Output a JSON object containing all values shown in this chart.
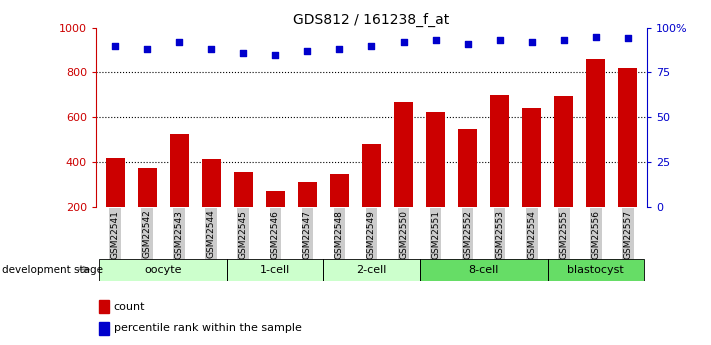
{
  "title": "GDS812 / 161238_f_at",
  "samples": [
    "GSM22541",
    "GSM22542",
    "GSM22543",
    "GSM22544",
    "GSM22545",
    "GSM22546",
    "GSM22547",
    "GSM22548",
    "GSM22549",
    "GSM22550",
    "GSM22551",
    "GSM22552",
    "GSM22553",
    "GSM22554",
    "GSM22555",
    "GSM22556",
    "GSM22557"
  ],
  "counts": [
    420,
    375,
    525,
    415,
    355,
    270,
    310,
    345,
    480,
    670,
    625,
    550,
    700,
    640,
    695,
    860,
    820
  ],
  "percentiles": [
    90,
    88,
    92,
    88,
    86,
    85,
    87,
    88,
    90,
    92,
    93,
    91,
    93,
    92,
    93,
    95,
    94
  ],
  "bar_color": "#cc0000",
  "dot_color": "#0000cc",
  "stages": [
    {
      "label": "oocyte",
      "start": 0,
      "end": 3,
      "light": true
    },
    {
      "label": "1-cell",
      "start": 4,
      "end": 6,
      "light": true
    },
    {
      "label": "2-cell",
      "start": 7,
      "end": 9,
      "light": true
    },
    {
      "label": "8-cell",
      "start": 10,
      "end": 13,
      "light": false
    },
    {
      "label": "blastocyst",
      "start": 14,
      "end": 16,
      "light": false
    }
  ],
  "light_stage_color": "#ccffcc",
  "dark_stage_color": "#66dd66",
  "ylim_left": [
    200,
    1000
  ],
  "ylim_right": [
    0,
    100
  ],
  "yticks_left": [
    200,
    400,
    600,
    800,
    1000
  ],
  "ytick_labels_left": [
    "200",
    "400",
    "600",
    "800",
    "1000"
  ],
  "yticks_right": [
    0,
    25,
    50,
    75,
    100
  ],
  "ytick_labels_right": [
    "0",
    "25",
    "50",
    "75",
    "100%"
  ],
  "grid_values": [
    400,
    600,
    800
  ],
  "tick_bg_color": "#cccccc",
  "legend_count_label": "count",
  "legend_percentile_label": "percentile rank within the sample",
  "dev_stage_label": "development stage"
}
